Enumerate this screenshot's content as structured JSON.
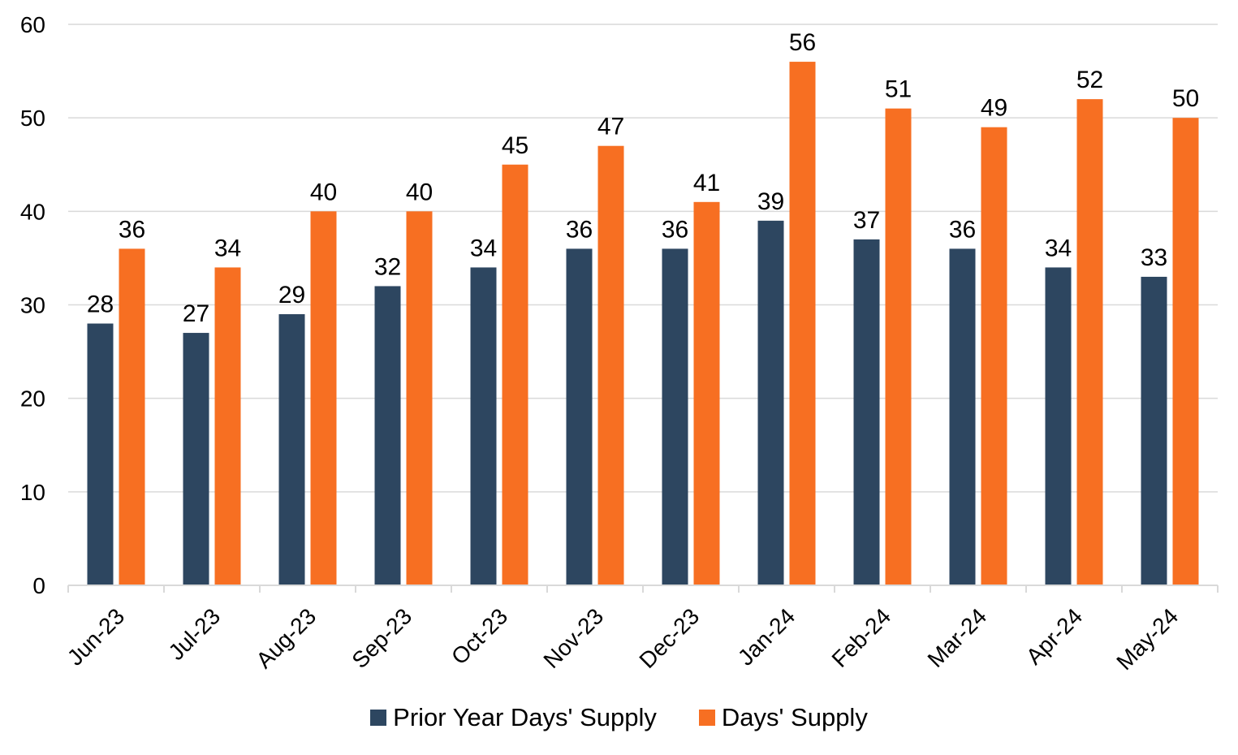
{
  "chart_data": {
    "type": "bar",
    "categories": [
      "Jun-23",
      "Jul-23",
      "Aug-23",
      "Sep-23",
      "Oct-23",
      "Nov-23",
      "Dec-23",
      "Jan-24",
      "Feb-24",
      "Mar-24",
      "Apr-24",
      "May-24"
    ],
    "series": [
      {
        "name": "Prior Year Days' Supply",
        "color": "#2d4660",
        "values": [
          28,
          27,
          29,
          32,
          34,
          36,
          36,
          39,
          37,
          36,
          34,
          33
        ]
      },
      {
        "name": "Days' Supply",
        "color": "#f76f22",
        "values": [
          36,
          34,
          40,
          40,
          45,
          47,
          41,
          56,
          51,
          49,
          52,
          50
        ]
      }
    ],
    "y_ticks": [
      0,
      10,
      20,
      30,
      40,
      50,
      60
    ],
    "ylim": [
      0,
      60
    ],
    "grid": true,
    "grid_color": "#d9d9d9",
    "legend_position": "bottom",
    "data_labels": true
  }
}
